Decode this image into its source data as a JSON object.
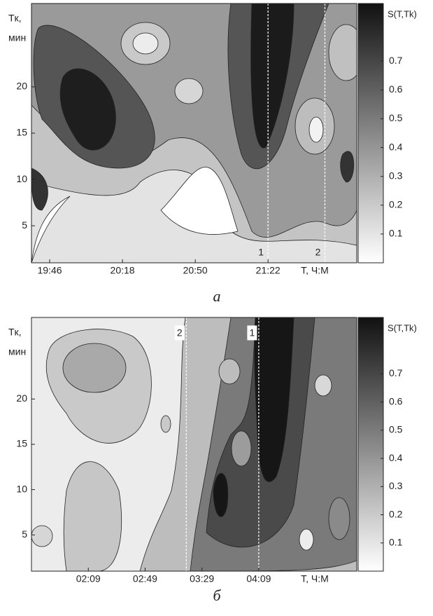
{
  "chart_data": [
    {
      "type": "contour",
      "ylabel": "Tк,",
      "yunit": "мин",
      "xlabel": "T, Ч:М",
      "colorbar_label": "S(T,Tk)",
      "xlim": [
        1178,
        1321
      ],
      "xticks": [
        {
          "value": 1186,
          "label": "19:46"
        },
        {
          "value": 1218,
          "label": "20:18"
        },
        {
          "value": 1250,
          "label": "20:50"
        },
        {
          "value": 1282,
          "label": "21:22"
        }
      ],
      "ylim": [
        1,
        29
      ],
      "yticks": [
        5,
        10,
        15,
        20
      ],
      "clim": [
        0,
        0.9
      ],
      "cticks": [
        0.1,
        0.2,
        0.3,
        0.4,
        0.5,
        0.6,
        0.7
      ],
      "markers": [
        {
          "x": 1282,
          "label": "1"
        },
        {
          "x": 1307,
          "label": "2"
        }
      ],
      "caption": "а"
    },
    {
      "type": "contour",
      "ylabel": "Tк,",
      "yunit": "мин",
      "xlabel": "T, Ч:М",
      "colorbar_label": "S(T,Tk)",
      "xlim": [
        89,
        318
      ],
      "xticks": [
        {
          "value": 129,
          "label": "02:09"
        },
        {
          "value": 169,
          "label": "02:49"
        },
        {
          "value": 209,
          "label": "03:29"
        },
        {
          "value": 249,
          "label": "04:09"
        }
      ],
      "ylim": [
        1,
        29
      ],
      "yticks": [
        5,
        10,
        15,
        20
      ],
      "clim": [
        0,
        0.9
      ],
      "cticks": [
        0.1,
        0.2,
        0.3,
        0.4,
        0.5,
        0.6,
        0.7
      ],
      "markers": [
        {
          "x": 198,
          "label": "2"
        },
        {
          "x": 249,
          "label": "1"
        }
      ],
      "caption": "б"
    }
  ]
}
